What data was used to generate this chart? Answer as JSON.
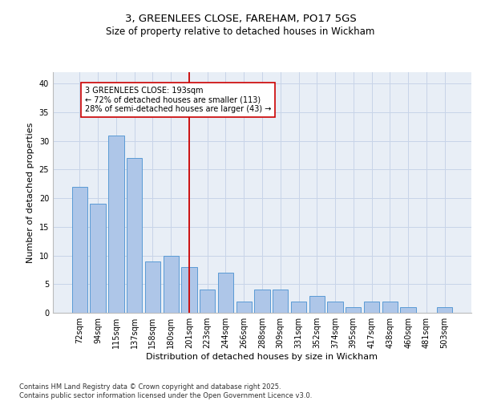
{
  "title_line1": "3, GREENLEES CLOSE, FAREHAM, PO17 5GS",
  "title_line2": "Size of property relative to detached houses in Wickham",
  "categories": [
    "72sqm",
    "94sqm",
    "115sqm",
    "137sqm",
    "158sqm",
    "180sqm",
    "201sqm",
    "223sqm",
    "244sqm",
    "266sqm",
    "288sqm",
    "309sqm",
    "331sqm",
    "352sqm",
    "374sqm",
    "395sqm",
    "417sqm",
    "438sqm",
    "460sqm",
    "481sqm",
    "503sqm"
  ],
  "values": [
    22,
    19,
    31,
    27,
    9,
    10,
    8,
    4,
    7,
    2,
    4,
    4,
    2,
    3,
    2,
    1,
    2,
    2,
    1,
    0,
    1
  ],
  "bar_color": "#aec6e8",
  "bar_edgecolor": "#5a9bd5",
  "bar_linewidth": 0.7,
  "vline_x_index": 6,
  "vline_color": "#cc0000",
  "xlabel": "Distribution of detached houses by size in Wickham",
  "ylabel": "Number of detached properties",
  "ylim": [
    0,
    42
  ],
  "yticks": [
    0,
    5,
    10,
    15,
    20,
    25,
    30,
    35,
    40
  ],
  "grid_color": "#c8d4e8",
  "bg_color": "#e8eef6",
  "annotation_line1": "3 GREENLEES CLOSE: 193sqm",
  "annotation_line2": "← 72% of detached houses are smaller (113)",
  "annotation_line3": "28% of semi-detached houses are larger (43) →",
  "annotation_box_edgecolor": "#cc0000",
  "title_fontsize": 9.5,
  "subtitle_fontsize": 8.5,
  "tick_fontsize": 7,
  "axis_label_fontsize": 8,
  "annotation_fontsize": 7,
  "footer_line1": "Contains HM Land Registry data © Crown copyright and database right 2025.",
  "footer_line2": "Contains public sector information licensed under the Open Government Licence v3.0.",
  "footer_fontsize": 6
}
